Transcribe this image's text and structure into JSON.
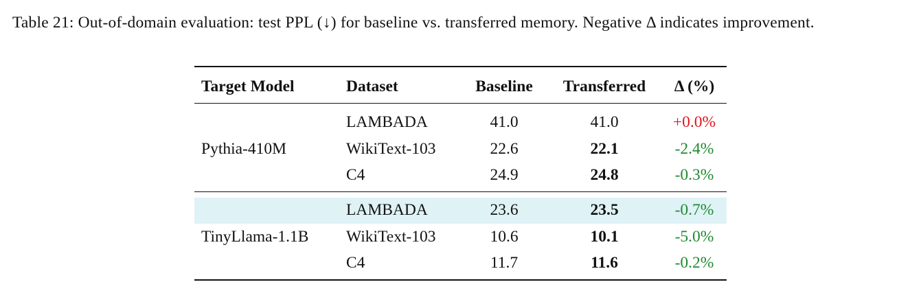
{
  "caption": "Table 21: Out-of-domain evaluation: test PPL (↓) for baseline vs. transferred memory. Negative Δ indicates improvement.",
  "table": {
    "header": [
      "Target Model",
      "Dataset",
      "Baseline",
      "Transferred",
      "Δ (%)"
    ],
    "groups": [
      {
        "model": "Pythia-410M",
        "rows": [
          [
            "LAMBADA",
            "41.0",
            "41.0",
            "+0.0%"
          ],
          [
            "WikiText-103",
            "22.6",
            "22.1",
            "-2.4%"
          ],
          [
            "C4",
            "24.9",
            "24.8",
            "-0.3%"
          ]
        ]
      },
      {
        "model": "TinyLlama-1.1B",
        "rows": [
          [
            "LAMBADA",
            "23.6",
            "23.5",
            "-0.7%"
          ],
          [
            "WikiText-103",
            "10.6",
            "10.1",
            "-5.0%"
          ],
          [
            "C4",
            "11.7",
            "11.6",
            "-0.2%"
          ]
        ]
      }
    ]
  }
}
